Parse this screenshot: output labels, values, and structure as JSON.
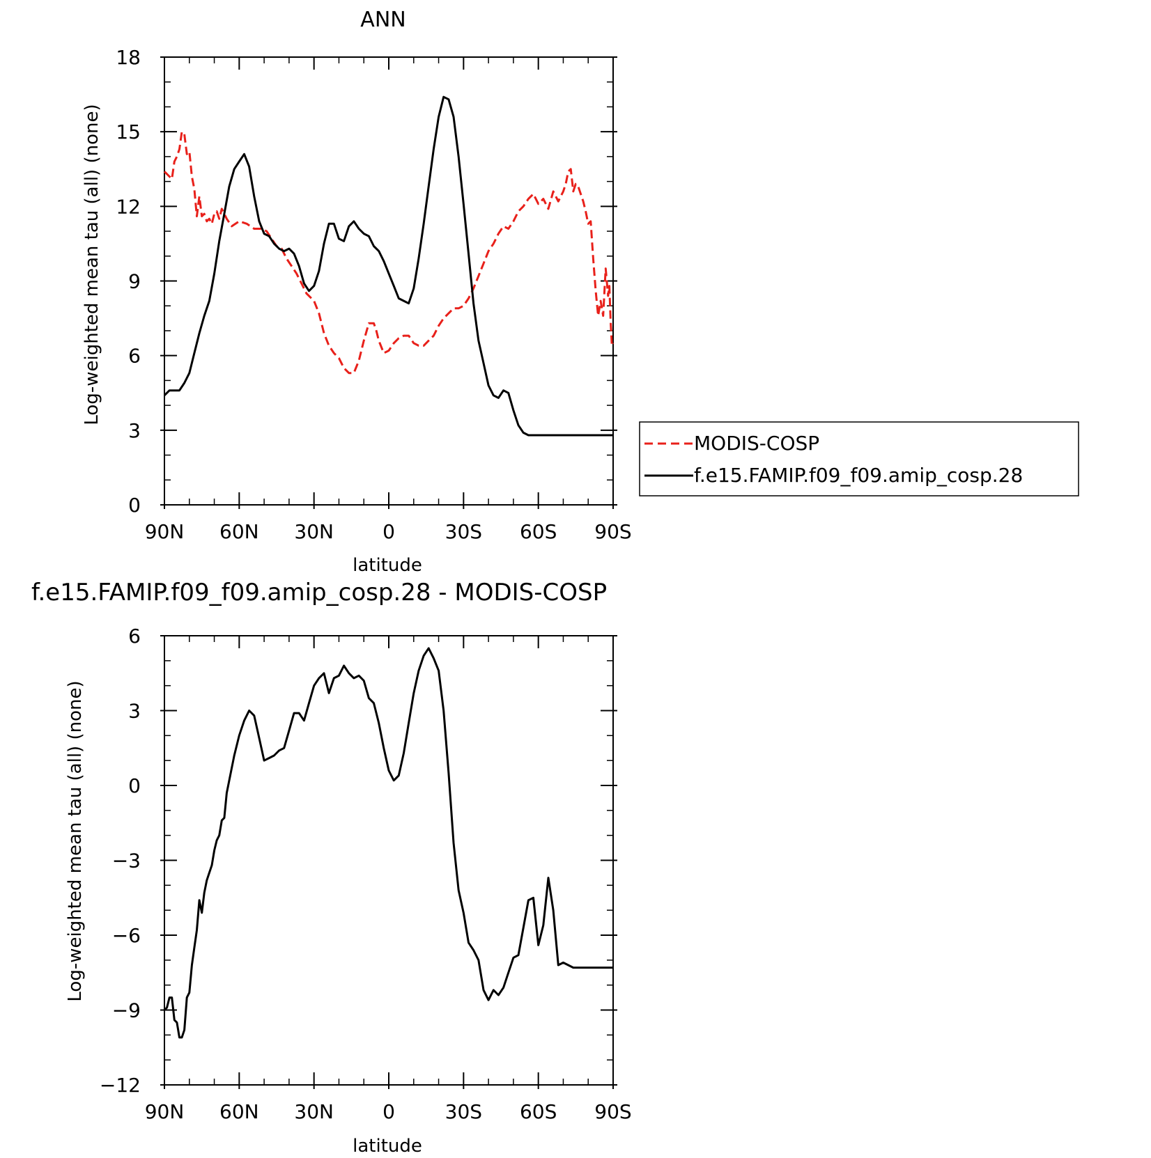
{
  "chart_data": [
    {
      "type": "line",
      "title": "ANN",
      "xlabel": "latitude",
      "ylabel": "Log-weighted mean tau (all) (none)",
      "xlim": [
        90,
        -90
      ],
      "ylim": [
        0,
        18
      ],
      "x_ticks": [
        90,
        60,
        30,
        0,
        -30,
        -60,
        -90
      ],
      "x_tick_labels": [
        "90N",
        "60N",
        "30N",
        "0",
        "30S",
        "60S",
        "90S"
      ],
      "y_ticks": [
        0,
        3,
        6,
        9,
        12,
        15,
        18
      ],
      "y_tick_labels": [
        "0",
        "3",
        "6",
        "9",
        "12",
        "15",
        "18"
      ],
      "legend_position": "right",
      "series": [
        {
          "name": "MODIS-COSP",
          "color": "#e8201a",
          "dash": "dashed",
          "x": [
            90,
            88,
            87,
            86,
            85,
            84,
            83,
            82,
            81,
            80,
            79,
            78,
            77,
            76,
            75,
            74,
            73,
            72,
            71,
            70,
            69,
            68,
            67,
            65,
            63,
            60,
            57,
            54,
            51,
            49,
            47,
            45,
            43,
            41,
            39,
            37,
            35,
            33,
            30,
            28,
            26,
            24,
            22,
            20,
            18,
            16,
            14,
            12,
            10,
            8,
            6,
            5,
            4,
            2,
            0,
            -2,
            -4,
            -6,
            -8,
            -10,
            -12,
            -14,
            -16,
            -18,
            -20,
            -22,
            -24,
            -26,
            -28,
            -30,
            -32,
            -34,
            -36,
            -38,
            -40,
            -42,
            -44,
            -46,
            -48,
            -50,
            -52,
            -54,
            -56,
            -58,
            -60,
            -62,
            -64,
            -66,
            -68,
            -70,
            -71,
            -72,
            -73,
            -74,
            -75,
            -76,
            -77,
            -78,
            -79,
            -80,
            -81,
            -82,
            -83,
            -84,
            -85,
            -86,
            -87,
            -88,
            -88.5,
            -89,
            -89.5,
            -90
          ],
          "y": [
            13.4,
            13.2,
            13.1,
            13.8,
            14.0,
            14.3,
            15.0,
            14.9,
            14.1,
            14.2,
            13.2,
            12.7,
            11.6,
            12.4,
            11.6,
            11.7,
            11.4,
            11.5,
            11.3,
            11.7,
            11.8,
            11.5,
            11.9,
            11.5,
            11.2,
            11.4,
            11.3,
            11.1,
            11.1,
            11.0,
            10.7,
            10.4,
            10.3,
            9.9,
            9.6,
            9.3,
            8.9,
            8.5,
            8.2,
            7.7,
            6.9,
            6.4,
            6.1,
            5.9,
            5.5,
            5.3,
            5.3,
            5.8,
            6.6,
            7.3,
            7.3,
            7.0,
            6.6,
            6.1,
            6.2,
            6.5,
            6.7,
            6.8,
            6.8,
            6.5,
            6.4,
            6.4,
            6.6,
            6.8,
            7.2,
            7.5,
            7.7,
            7.9,
            7.9,
            8.0,
            8.3,
            8.7,
            9.2,
            9.7,
            10.2,
            10.5,
            10.9,
            11.2,
            11.1,
            11.4,
            11.8,
            12.0,
            12.3,
            12.5,
            12.1,
            12.3,
            11.9,
            12.6,
            12.2,
            12.6,
            12.9,
            13.4,
            13.5,
            12.6,
            12.9,
            12.8,
            12.5,
            12.2,
            11.8,
            11.3,
            11.4,
            9.9,
            8.6,
            7.6,
            8.2,
            7.6,
            9.5,
            8.4,
            8.8,
            7.4,
            6.4,
            6.5
          ]
        },
        {
          "name": "f.e15.FAMIP.f09_f09.amip_cosp.28",
          "color": "#000000",
          "dash": "solid",
          "x": [
            90,
            88,
            86,
            84,
            82,
            80,
            78,
            76,
            74,
            72,
            70,
            68,
            66,
            64,
            62,
            60,
            58,
            56,
            54,
            52,
            50,
            48,
            46,
            44,
            42,
            40,
            38,
            36,
            34,
            32,
            30,
            28,
            26,
            24,
            22,
            20,
            18,
            16,
            14,
            12,
            10,
            8,
            6,
            4,
            2,
            0,
            -2,
            -4,
            -6,
            -8,
            -10,
            -12,
            -14,
            -16,
            -18,
            -20,
            -22,
            -24,
            -26,
            -28,
            -30,
            -32,
            -34,
            -36,
            -38,
            -40,
            -42,
            -44,
            -46,
            -48,
            -50,
            -52,
            -54,
            -56,
            -58,
            -60,
            -62,
            -64,
            -66,
            -68,
            -70,
            -72,
            -74,
            -76,
            -78,
            -80,
            -82,
            -84,
            -86,
            -88,
            -90
          ],
          "y": [
            4.4,
            4.6,
            4.6,
            4.6,
            4.9,
            5.3,
            6.1,
            6.9,
            7.6,
            8.2,
            9.3,
            10.6,
            11.7,
            12.8,
            13.5,
            13.8,
            14.1,
            13.6,
            12.4,
            11.4,
            10.9,
            10.8,
            10.5,
            10.3,
            10.2,
            10.3,
            10.1,
            9.6,
            8.9,
            8.6,
            8.8,
            9.4,
            10.5,
            11.3,
            11.3,
            10.7,
            10.6,
            11.2,
            11.4,
            11.1,
            10.9,
            10.8,
            10.4,
            10.2,
            9.8,
            9.3,
            8.8,
            8.3,
            8.2,
            8.1,
            8.7,
            9.9,
            11.3,
            12.8,
            14.3,
            15.6,
            16.4,
            16.3,
            15.6,
            14.0,
            12.1,
            10.1,
            8.1,
            6.6,
            5.7,
            4.8,
            4.4,
            4.3,
            4.6,
            4.5,
            3.8,
            3.2,
            2.9,
            2.8,
            2.8,
            2.8,
            2.8,
            2.8,
            2.8,
            2.8,
            2.8,
            2.8,
            2.8,
            2.8,
            2.8,
            2.8,
            2.8,
            2.8,
            2.8,
            2.8,
            2.8
          ]
        }
      ]
    },
    {
      "type": "line",
      "title": "f.e15.FAMIP.f09_f09.amip_cosp.28 - MODIS-COSP",
      "xlabel": "latitude",
      "ylabel": "Log-weighted mean tau (all) (none)",
      "xlim": [
        90,
        -90
      ],
      "ylim": [
        -12,
        6
      ],
      "x_ticks": [
        90,
        60,
        30,
        0,
        -30,
        -60,
        -90
      ],
      "x_tick_labels": [
        "90N",
        "60N",
        "30N",
        "0",
        "30S",
        "60S",
        "90S"
      ],
      "y_ticks": [
        -12,
        -9,
        -6,
        -3,
        0,
        3,
        6
      ],
      "y_tick_labels": [
        "−12",
        "−9",
        "−6",
        "−3",
        "0",
        "3",
        "6"
      ],
      "series": [
        {
          "name": "",
          "color": "#000000",
          "dash": "solid",
          "x": [
            90,
            89,
            88,
            87,
            86,
            85,
            84,
            83,
            82,
            81,
            80,
            79,
            78,
            77,
            76,
            75,
            74,
            73,
            72,
            71,
            70,
            69,
            68,
            67,
            66,
            65,
            64,
            62,
            60,
            58,
            56,
            54,
            52,
            50,
            48,
            46,
            44,
            42,
            40,
            38,
            36,
            34,
            32,
            30,
            28,
            26,
            24,
            22,
            20,
            18,
            16,
            14,
            12,
            10,
            8,
            6,
            4,
            2,
            0,
            -2,
            -4,
            -6,
            -8,
            -10,
            -12,
            -14,
            -16,
            -18,
            -20,
            -22,
            -24,
            -26,
            -28,
            -30,
            -32,
            -34,
            -36,
            -38,
            -40,
            -42,
            -44,
            -46,
            -48,
            -50,
            -52,
            -54,
            -56,
            -58,
            -60,
            -62,
            -64,
            -66,
            -68,
            -70,
            -72,
            -74,
            -75,
            -76,
            -77,
            -78,
            -79,
            -80,
            -81,
            -82,
            -83,
            -84,
            -85,
            -86,
            -87,
            -88,
            -88.5,
            -89,
            -89.5,
            -90
          ],
          "y": [
            -9.0,
            -8.9,
            -8.5,
            -8.5,
            -9.4,
            -9.5,
            -10.1,
            -10.1,
            -9.8,
            -8.5,
            -8.3,
            -7.2,
            -6.5,
            -5.8,
            -4.6,
            -5.1,
            -4.3,
            -3.8,
            -3.5,
            -3.2,
            -2.6,
            -2.2,
            -2.0,
            -1.4,
            -1.3,
            -0.3,
            0.2,
            1.2,
            2.0,
            2.6,
            3.0,
            2.8,
            1.9,
            1.0,
            1.1,
            1.2,
            1.4,
            1.5,
            2.2,
            2.9,
            2.9,
            2.6,
            3.3,
            4.0,
            4.3,
            4.5,
            3.7,
            4.3,
            4.4,
            4.8,
            4.5,
            4.3,
            4.4,
            4.2,
            3.5,
            3.3,
            2.5,
            1.5,
            0.6,
            0.2,
            0.4,
            1.3,
            2.5,
            3.7,
            4.6,
            5.2,
            5.5,
            5.1,
            4.6,
            3.0,
            0.5,
            -2.3,
            -4.2,
            -5.1,
            -6.3,
            -6.6,
            -7.0,
            -8.2,
            -8.6,
            -8.2,
            -8.4,
            -8.1,
            -7.5,
            -6.9,
            -6.8,
            -5.7,
            -4.6,
            -4.5,
            -6.4,
            -5.6,
            -3.7,
            -5.0,
            -7.2,
            -7.1,
            -7.2,
            -7.3,
            -7.3,
            -7.3,
            -7.3,
            -7.3,
            -7.3,
            -7.3,
            -7.3,
            -7.3,
            -7.3,
            -7.3,
            -7.3,
            -7.3,
            -7.3,
            -7.3,
            -7.3,
            -7.3,
            -7.3,
            -7.3
          ]
        }
      ]
    }
  ]
}
